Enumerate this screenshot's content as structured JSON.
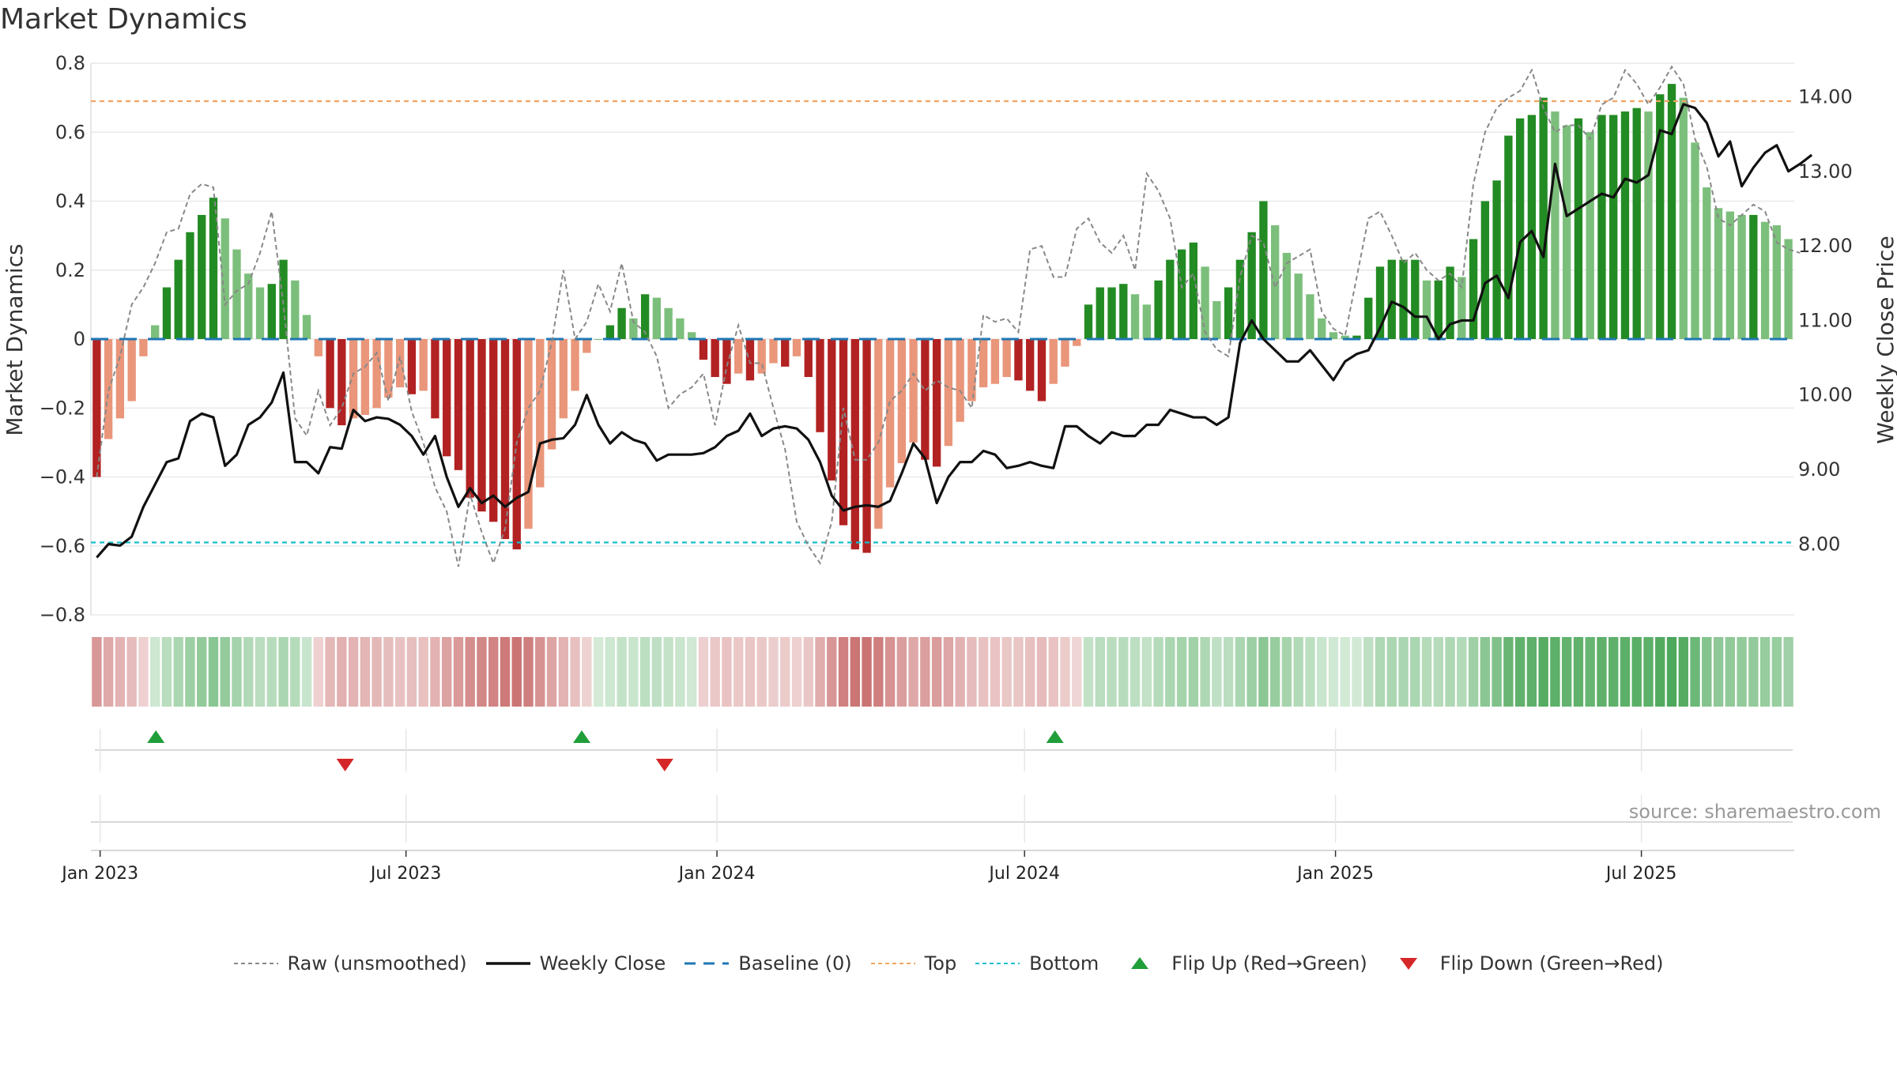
{
  "title": "Market Dynamics",
  "source": "source: sharemaestro.com",
  "colors": {
    "dark_green": "#238b23",
    "light_green": "#7cbf7c",
    "dark_red": "#b22222",
    "light_red": "#e9967a",
    "close_line": "#111111",
    "raw_line": "#888888",
    "baseline": "#1f77b4",
    "top": "#f4a460",
    "bottom": "#17becf",
    "flip_up": "#1f9e3a",
    "flip_down": "#d62728"
  },
  "chart_data": {
    "type": "bar",
    "left_axis": {
      "label": "Market Dynamics",
      "ylim": [
        -0.8,
        0.8
      ],
      "ticks": [
        "0.8",
        "0.6",
        "0.4",
        "0.2",
        "0",
        "−0.2",
        "−0.4",
        "−0.6",
        "−0.8"
      ]
    },
    "right_axis": {
      "label": "Weekly Close Price",
      "ylim": [
        7.05,
        14.45
      ],
      "ticks": [
        "14.00",
        "13.00",
        "12.00",
        "11.00",
        "10.00",
        "9.00",
        "8.00"
      ]
    },
    "x_axis": {
      "start": "2022-12-30",
      "end": "2025-09-26",
      "ticks": [
        {
          "label": "Jan 2023",
          "date": "2023-01-01"
        },
        {
          "label": "Jul 2023",
          "date": "2023-07-01"
        },
        {
          "label": "Jan 2024",
          "date": "2024-01-01"
        },
        {
          "label": "Jul 2024",
          "date": "2024-07-01"
        },
        {
          "label": "Jan 2025",
          "date": "2025-01-01"
        },
        {
          "label": "Jul 2025",
          "date": "2025-07-01"
        }
      ]
    },
    "series": [
      {
        "name": "Market Dynamics (smoothed)",
        "kind": "bar",
        "values": [
          -0.4,
          -0.29,
          -0.23,
          -0.18,
          -0.05,
          0.04,
          0.15,
          0.23,
          0.31,
          0.36,
          0.41,
          0.35,
          0.26,
          0.19,
          0.15,
          0.16,
          0.23,
          0.17,
          0.07,
          -0.05,
          -0.2,
          -0.25,
          -0.23,
          -0.22,
          -0.2,
          -0.17,
          -0.14,
          -0.16,
          -0.15,
          -0.23,
          -0.34,
          -0.38,
          -0.46,
          -0.5,
          -0.53,
          -0.58,
          -0.61,
          -0.55,
          -0.43,
          -0.32,
          -0.23,
          -0.15,
          -0.04,
          0,
          0.04,
          0.09,
          0.06,
          0.13,
          0.12,
          0.09,
          0.06,
          0.02,
          -0.06,
          -0.11,
          -0.13,
          -0.1,
          -0.12,
          -0.1,
          -0.07,
          -0.08,
          -0.05,
          -0.11,
          -0.27,
          -0.41,
          -0.54,
          -0.61,
          -0.62,
          -0.55,
          -0.43,
          -0.36,
          -0.3,
          -0.35,
          -0.37,
          -0.31,
          -0.24,
          -0.18,
          -0.14,
          -0.13,
          -0.11,
          -0.12,
          -0.15,
          -0.18,
          -0.13,
          -0.08,
          -0.02,
          0.1,
          0.15,
          0.15,
          0.16,
          0.13,
          0.1,
          0.17,
          0.23,
          0.26,
          0.28,
          0.21,
          0.11,
          0.15,
          0.23,
          0.31,
          0.4,
          0.33,
          0.25,
          0.19,
          0.13,
          0.06,
          0.02,
          0.01,
          0.01,
          0.12,
          0.21,
          0.23,
          0.23,
          0.23,
          0.17,
          0.17,
          0.21,
          0.18,
          0.29,
          0.4,
          0.46,
          0.59,
          0.64,
          0.65,
          0.7,
          0.66,
          0.62,
          0.64,
          0.6,
          0.65,
          0.65,
          0.66,
          0.67,
          0.66,
          0.71,
          0.74,
          0.7,
          0.57,
          0.44,
          0.38,
          0.37,
          0.36,
          0.36,
          0.34,
          0.33,
          0.29
        ]
      },
      {
        "name": "Raw (unsmoothed)",
        "kind": "line",
        "values": [
          -0.4,
          -0.15,
          -0.05,
          0.1,
          0.15,
          0.22,
          0.31,
          0.32,
          0.42,
          0.45,
          0.44,
          0.1,
          0.14,
          0.16,
          0.25,
          0.37,
          0.1,
          -0.23,
          -0.28,
          -0.15,
          -0.25,
          -0.2,
          -0.1,
          -0.08,
          -0.04,
          -0.18,
          -0.05,
          -0.21,
          -0.3,
          -0.43,
          -0.5,
          -0.66,
          -0.45,
          -0.56,
          -0.65,
          -0.55,
          -0.3,
          -0.2,
          -0.15,
          -0.01,
          0.2,
          0,
          0.05,
          0.16,
          0.08,
          0.22,
          0.05,
          0.02,
          -0.05,
          -0.2,
          -0.16,
          -0.14,
          -0.1,
          -0.25,
          -0.08,
          0.04,
          -0.07,
          -0.07,
          -0.2,
          -0.32,
          -0.53,
          -0.6,
          -0.65,
          -0.53,
          -0.2,
          -0.35,
          -0.35,
          -0.3,
          -0.18,
          -0.15,
          -0.1,
          -0.15,
          -0.12,
          -0.14,
          -0.15,
          -0.2,
          0.07,
          0.05,
          0.06,
          0.02,
          0.26,
          0.27,
          0.18,
          0.18,
          0.32,
          0.35,
          0.28,
          0.25,
          0.3,
          0.2,
          0.48,
          0.43,
          0.35,
          0.15,
          0.19,
          0.02,
          -0.03,
          -0.05,
          0.18,
          0.3,
          0.28,
          0.15,
          0.22,
          0.24,
          0.26,
          0.08,
          0.03,
          0.01,
          0.18,
          0.35,
          0.37,
          0.3,
          0.22,
          0.25,
          0.2,
          0.17,
          0.19,
          0.15,
          0.45,
          0.6,
          0.67,
          0.7,
          0.72,
          0.78,
          0.67,
          0.6,
          0.62,
          0.62,
          0.58,
          0.68,
          0.7,
          0.78,
          0.74,
          0.68,
          0.73,
          0.79,
          0.74,
          0.58,
          0.5,
          0.35,
          0.33,
          0.36,
          0.39,
          0.37,
          0.28,
          0.26,
          0.25
        ]
      },
      {
        "name": "Weekly Close",
        "kind": "line",
        "axis": "right",
        "values": [
          7.82,
          8.0,
          7.98,
          8.1,
          8.5,
          8.8,
          9.1,
          9.15,
          9.65,
          9.75,
          9.7,
          9.05,
          9.2,
          9.6,
          9.7,
          9.9,
          10.3,
          9.1,
          9.1,
          8.95,
          9.3,
          9.28,
          9.8,
          9.65,
          9.7,
          9.68,
          9.6,
          9.45,
          9.2,
          9.45,
          8.9,
          8.5,
          8.75,
          8.55,
          8.65,
          8.5,
          8.62,
          8.7,
          9.35,
          9.4,
          9.42,
          9.6,
          10.0,
          9.6,
          9.35,
          9.5,
          9.4,
          9.35,
          9.12,
          9.2,
          9.2,
          9.2,
          9.22,
          9.3,
          9.45,
          9.52,
          9.75,
          9.45,
          9.55,
          9.58,
          9.55,
          9.4,
          9.1,
          8.65,
          8.45,
          8.5,
          8.52,
          8.5,
          8.58,
          8.95,
          9.35,
          9.15,
          8.55,
          8.9,
          9.1,
          9.1,
          9.25,
          9.2,
          9.02,
          9.05,
          9.1,
          9.05,
          9.02,
          9.58,
          9.58,
          9.45,
          9.35,
          9.5,
          9.45,
          9.45,
          9.6,
          9.6,
          9.8,
          9.75,
          9.7,
          9.7,
          9.6,
          9.7,
          10.7,
          11.0,
          10.75,
          10.6,
          10.45,
          10.45,
          10.6,
          10.4,
          10.2,
          10.45,
          10.55,
          10.6,
          10.9,
          11.25,
          11.18,
          11.05,
          11.05,
          10.75,
          10.95,
          11.0,
          11.0,
          11.5,
          11.6,
          11.3,
          12.05,
          12.2,
          11.85,
          13.1,
          12.4,
          12.5,
          12.6,
          12.7,
          12.65,
          12.9,
          12.85,
          12.95,
          13.55,
          13.5,
          13.9,
          13.85,
          13.65,
          13.2,
          13.4,
          12.8,
          13.05,
          13.25,
          13.35,
          13.0,
          13.1,
          13.22
        ]
      }
    ],
    "reference_lines": [
      {
        "name": "Baseline (0)",
        "value": 0
      },
      {
        "name": "Top",
        "value": 0.69
      },
      {
        "name": "Bottom",
        "value": -0.59
      }
    ],
    "flip_up_dates": [
      "2023-02-03",
      "2023-10-13",
      "2024-07-19"
    ],
    "flip_down_dates": [
      "2023-05-26",
      "2023-12-01"
    ],
    "legend": [
      "Raw (unsmoothed)",
      "Weekly Close",
      "Baseline (0)",
      "Top",
      "Bottom",
      "Flip Up (Red→Green)",
      "Flip Down (Green→Red)"
    ],
    "legend_position": "bottom",
    "grid": true
  }
}
